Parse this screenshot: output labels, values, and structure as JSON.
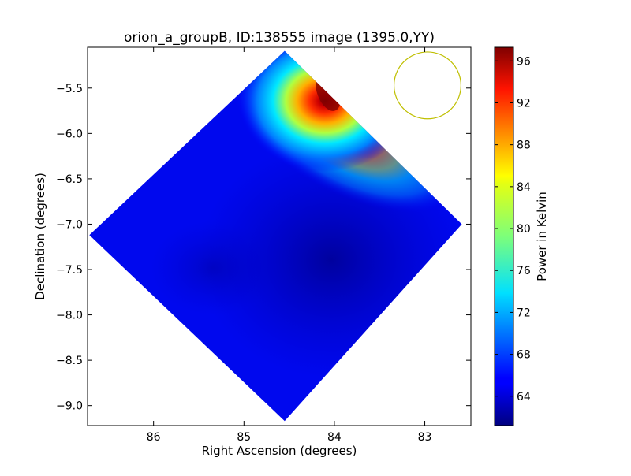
{
  "chart_data": {
    "type": "heatmap",
    "title": "orion_a_groupB, ID:138555 image (1395.0,YY)",
    "xlabel": "Right Ascension (degrees)",
    "ylabel": "Declination (degrees)",
    "x_ticks": [
      "86",
      "85",
      "84",
      "83"
    ],
    "x_tick_values": [
      86,
      85,
      84,
      83
    ],
    "y_ticks": [
      "−5.5",
      "−6.0",
      "−6.5",
      "−7.0",
      "−7.5",
      "−8.0",
      "−8.5",
      "−9.0"
    ],
    "y_tick_values": [
      -5.5,
      -6.0,
      -6.5,
      -7.0,
      -7.5,
      -8.0,
      -8.5,
      -9.0
    ],
    "xlim": [
      86.73,
      82.49
    ],
    "ylim": [
      -9.22,
      -5.05
    ],
    "x_reversed": true,
    "colorbar": {
      "label": "Power in Kelvin",
      "ticks": [
        "64",
        "68",
        "72",
        "76",
        "80",
        "84",
        "88",
        "92",
        "96"
      ],
      "tick_values": [
        64,
        68,
        72,
        76,
        80,
        84,
        88,
        92,
        96
      ],
      "range": [
        61.2,
        97.3
      ],
      "colormap": "jet"
    },
    "field_region": {
      "shape": "rotated square",
      "vertices": [
        {
          "ra": 84.55,
          "dec": -5.09
        },
        {
          "ra": 82.59,
          "dec": -7.0
        },
        {
          "ra": 84.55,
          "dec": -9.17
        },
        {
          "ra": 86.71,
          "dec": -7.12
        }
      ]
    },
    "background_level": 64,
    "peak": {
      "ra": 84.05,
      "dec": -5.5,
      "value": 97
    },
    "beam": {
      "ra": 82.97,
      "dec": -5.47,
      "radius_deg": 0.37,
      "color": "#bfbf00"
    }
  }
}
